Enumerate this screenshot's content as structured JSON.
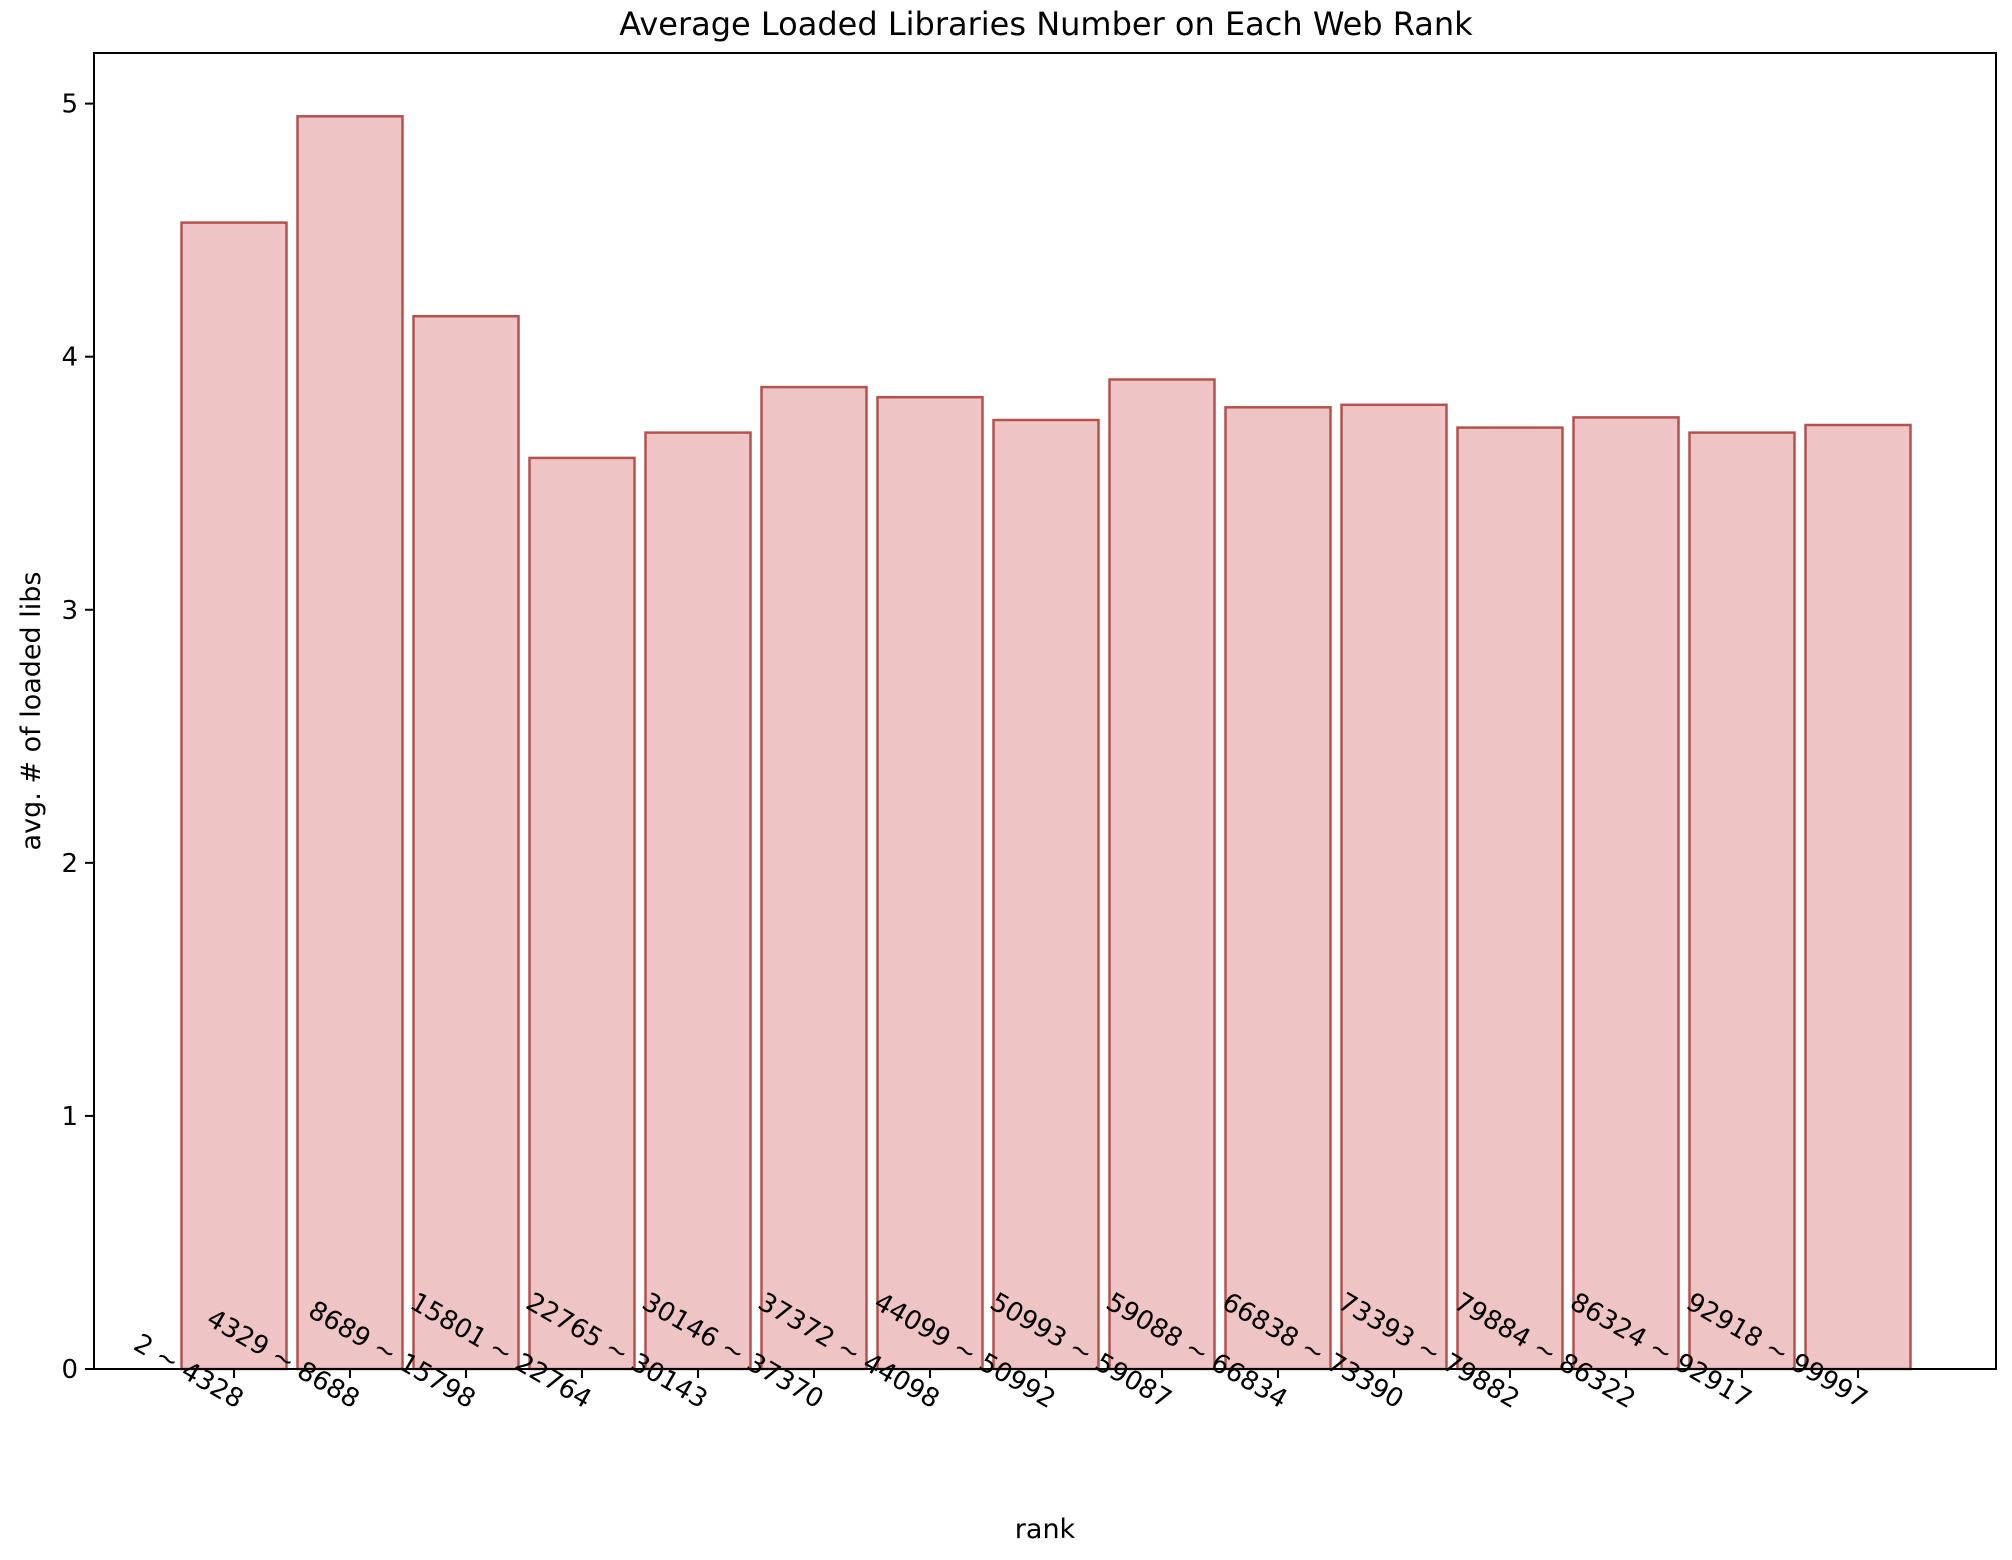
{
  "chart_data": {
    "type": "bar",
    "title": "Average Loaded Libraries Number on Each Web Rank",
    "xlabel": "rank",
    "ylabel": "avg. # of loaded libs",
    "ylim": [
      0,
      5.2
    ],
    "yticks": [
      0,
      1,
      2,
      3,
      4,
      5
    ],
    "grid": false,
    "categories": [
      "2 ~ 4328",
      "4329 ~ 8688",
      "8689 ~ 15798",
      "15801 ~ 22764",
      "22765 ~ 30143",
      "30146 ~ 37370",
      "37372 ~ 44098",
      "44099 ~ 50992",
      "50993 ~ 59087",
      "59088 ~ 66834",
      "66838 ~ 73390",
      "73393 ~ 79882",
      "79884 ~ 86322",
      "86324 ~ 92917",
      "92918 ~ 99997"
    ],
    "values": [
      4.53,
      4.95,
      4.16,
      3.6,
      3.7,
      3.88,
      3.84,
      3.75,
      3.91,
      3.8,
      3.81,
      3.72,
      3.76,
      3.7,
      3.73
    ],
    "colors": {
      "bar_fill": "#eec4c5",
      "bar_edge": "#b5524f"
    }
  }
}
